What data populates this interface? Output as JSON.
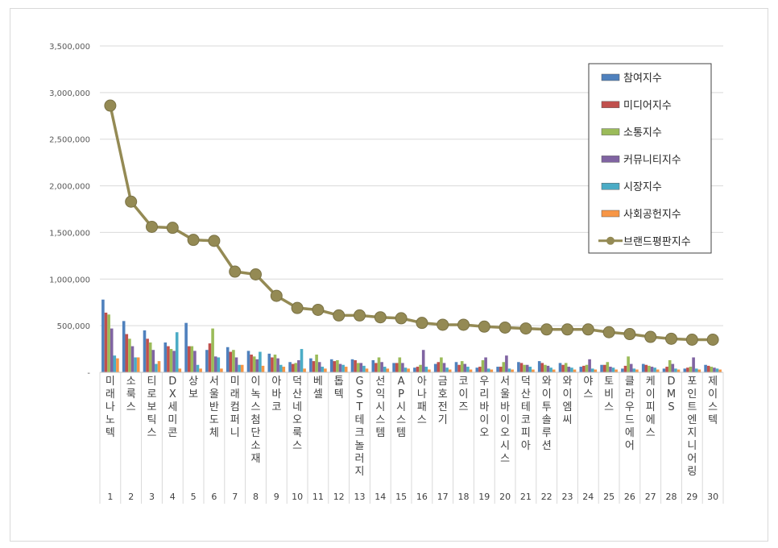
{
  "chart_data": {
    "type": "bar",
    "title": "",
    "xlabel": "",
    "ylabel": "",
    "ylim": [
      0,
      3500000
    ],
    "yticks": [
      0,
      500000,
      1000000,
      1500000,
      2000000,
      2500000,
      3000000,
      3500000
    ],
    "ytick_labels": [
      "-",
      "500,000",
      "1,000,000",
      "1,500,000",
      "2,000,000",
      "2,500,000",
      "3,000,000",
      "3,500,000"
    ],
    "grid": true,
    "legend_position": "top-right",
    "ranks": [
      "1",
      "2",
      "3",
      "4",
      "5",
      "6",
      "7",
      "8",
      "9",
      "10",
      "11",
      "12",
      "13",
      "14",
      "15",
      "16",
      "17",
      "18",
      "19",
      "20",
      "21",
      "22",
      "23",
      "24",
      "25",
      "26",
      "27",
      "28",
      "29",
      "30"
    ],
    "categories": [
      "미래나노텍",
      "소룩스",
      "티로보틱스",
      "DX세미콘",
      "상보",
      "서울반도체",
      "미래컴퍼니",
      "이녹스첨단소재",
      "아바코",
      "덕산네오룩스",
      "베셀",
      "톱텍",
      "GST테크놀러지",
      "선익시스템",
      "AP시스템",
      "아나패스",
      "금호전기",
      "코이즈",
      "우리바이오",
      "서울바이오시스",
      "덕산테코피아",
      "와이투솔루션",
      "와이엠씨",
      "야스",
      "토비스",
      "클라우드에어",
      "케이피에스",
      "DMS",
      "포인트엔지니어링",
      "제이스텍"
    ],
    "series": [
      {
        "name": "참여지수",
        "color": "#4f81bd",
        "values": [
          780000,
          550000,
          450000,
          320000,
          530000,
          240000,
          270000,
          230000,
          200000,
          110000,
          150000,
          140000,
          140000,
          130000,
          100000,
          50000,
          90000,
          110000,
          50000,
          60000,
          110000,
          120000,
          100000,
          60000,
          80000,
          40000,
          90000,
          40000,
          40000,
          80000
        ]
      },
      {
        "name": "미디어지수",
        "color": "#c0504d",
        "values": [
          640000,
          410000,
          360000,
          280000,
          280000,
          310000,
          220000,
          190000,
          160000,
          90000,
          120000,
          120000,
          130000,
          100000,
          100000,
          60000,
          110000,
          80000,
          60000,
          60000,
          100000,
          100000,
          80000,
          70000,
          80000,
          70000,
          80000,
          60000,
          50000,
          70000
        ]
      },
      {
        "name": "소통지수",
        "color": "#9bbb59",
        "values": [
          620000,
          360000,
          320000,
          250000,
          280000,
          470000,
          240000,
          170000,
          190000,
          100000,
          190000,
          130000,
          100000,
          160000,
          160000,
          80000,
          160000,
          120000,
          130000,
          110000,
          80000,
          80000,
          100000,
          80000,
          110000,
          170000,
          70000,
          130000,
          60000,
          60000
        ]
      },
      {
        "name": "커뮤니티지수",
        "color": "#8064a2",
        "values": [
          470000,
          280000,
          240000,
          230000,
          230000,
          170000,
          160000,
          140000,
          150000,
          130000,
          110000,
          90000,
          100000,
          110000,
          100000,
          240000,
          100000,
          90000,
          160000,
          180000,
          80000,
          70000,
          60000,
          140000,
          60000,
          90000,
          60000,
          90000,
          160000,
          50000
        ]
      },
      {
        "name": "시장지수",
        "color": "#4bacc6",
        "values": [
          180000,
          160000,
          90000,
          430000,
          80000,
          160000,
          80000,
          220000,
          80000,
          250000,
          60000,
          80000,
          70000,
          60000,
          50000,
          60000,
          50000,
          60000,
          40000,
          40000,
          60000,
          50000,
          50000,
          40000,
          50000,
          40000,
          50000,
          40000,
          40000,
          40000
        ]
      },
      {
        "name": "사회공헌지수",
        "color": "#f79646",
        "values": [
          150000,
          160000,
          120000,
          40000,
          40000,
          40000,
          80000,
          70000,
          60000,
          40000,
          40000,
          60000,
          40000,
          40000,
          40000,
          30000,
          30000,
          30000,
          30000,
          30000,
          30000,
          30000,
          30000,
          30000,
          30000,
          30000,
          30000,
          30000,
          30000,
          30000
        ]
      }
    ],
    "line_series": {
      "name": "브랜드평판지수",
      "color": "#948a54",
      "values": [
        2860000,
        1830000,
        1560000,
        1550000,
        1420000,
        1410000,
        1080000,
        1050000,
        820000,
        690000,
        670000,
        610000,
        610000,
        590000,
        580000,
        530000,
        510000,
        510000,
        490000,
        480000,
        470000,
        460000,
        460000,
        460000,
        430000,
        410000,
        380000,
        360000,
        350000,
        350000
      ]
    }
  }
}
